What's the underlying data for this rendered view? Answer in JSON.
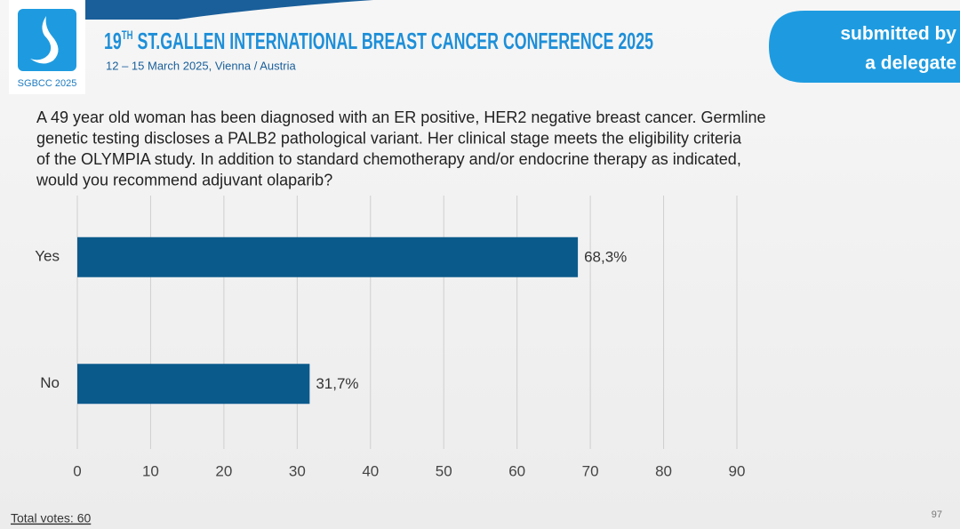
{
  "header": {
    "title_number": "19",
    "title_sup": "TH",
    "title_rest": " ST.GALLEN INTERNATIONAL BREAST CANCER CONFERENCE 2025",
    "subtitle": "12 – 15 March 2025, Vienna / Austria",
    "logo_text": "SGBCC 2025"
  },
  "badge": {
    "lines": [
      "submitted by",
      "a delegate"
    ]
  },
  "question": {
    "lines": [
      "A 49 year old woman has been diagnosed with an ER positive, HER2 negative breast cancer.  Germline",
      "genetic testing discloses a PALB2 pathological variant. Her clinical stage meets the eligibility criteria",
      "of the OLYMPIA study.  In addition to standard chemotherapy and/or endocrine therapy as indicated,",
      "would you recommend adjuvant olaparib?"
    ]
  },
  "chart_data": {
    "type": "hbar",
    "categories": [
      "Yes",
      "No"
    ],
    "values": [
      68.3,
      31.7
    ],
    "value_labels": [
      "68,3%",
      "31,7%"
    ],
    "color": "#0b5a8c",
    "xlim": [
      0,
      90
    ],
    "xticks": [
      0,
      10,
      20,
      30,
      40,
      50,
      60,
      70,
      80,
      90
    ],
    "grid": true
  },
  "footer": {
    "total_votes": "Total votes: 60",
    "page_number": "97"
  }
}
